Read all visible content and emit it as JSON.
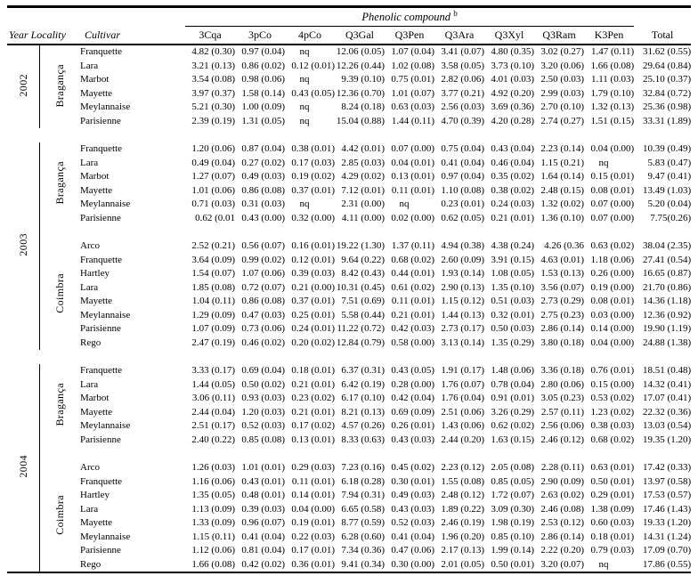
{
  "table": {
    "group_header": "Phenolic compound",
    "group_header_note": "b",
    "year_locality_header": "Year Locality",
    "cultivar_header": "Cultivar",
    "compound_columns": [
      "3Cqa",
      "3pCo",
      "4pCo",
      "Q3Gal",
      "Q3Pen",
      "Q3Ara",
      "Q3Xyl",
      "Q3Ram",
      "K3Pen"
    ],
    "total_label": "Total",
    "groups": [
      {
        "year": "2002",
        "localities": [
          {
            "name": "Bragança",
            "rows": [
              {
                "cultivar": "Franquette",
                "values": [
                  "4.82 (0.30)",
                  "0.97 (0.04)",
                  "nq",
                  "12.06 (0.05)",
                  "1.07 (0.04)",
                  "3.41 (0.07)",
                  "4.80 (0.35)",
                  "3.02 (0.27)",
                  "1.47 (0.11)",
                  "31.62 (0.55)"
                ]
              },
              {
                "cultivar": "Lara",
                "values": [
                  "3.21 (0.13)",
                  "0.86 (0.02)",
                  "0.12 (0.01)",
                  "12.26 (0.44)",
                  "1.02 (0.08)",
                  "3.58 (0.05)",
                  "3.73 (0.10)",
                  "3.20 (0.06)",
                  "1.66 (0.08)",
                  "29.64 (0.84)"
                ]
              },
              {
                "cultivar": "Marbot",
                "values": [
                  "3.54 (0.08)",
                  "0.98 (0.06)",
                  "nq",
                  "9.39 (0.10)",
                  "0.75 (0.01)",
                  "2.82 (0.06)",
                  "4.01 (0.03)",
                  "2.50 (0.03)",
                  "1.11 (0.03)",
                  "25.10 (0.37)"
                ]
              },
              {
                "cultivar": "Mayette",
                "values": [
                  "3.97 (0.37)",
                  "1.58 (0.14)",
                  "0.43 (0.05)",
                  "12.36 (0.70)",
                  "1.01 (0.07)",
                  "3.77 (0.21)",
                  "4.92 (0.20)",
                  "2.99 (0.03)",
                  "1.79 (0.10)",
                  "32.84 (0.72)"
                ]
              },
              {
                "cultivar": "Meylannaise",
                "values": [
                  "5.21 (0.30)",
                  "1.00 (0.09)",
                  "nq",
                  "8.24 (0.18)",
                  "0.63 (0.03)",
                  "2.56 (0.03)",
                  "3.69 (0.36)",
                  "2.70 (0.10)",
                  "1.32 (0.13)",
                  "25.36 (0.98)"
                ]
              },
              {
                "cultivar": "Parisienne",
                "values": [
                  "2.39 (0.19)",
                  "1.31 (0.05)",
                  "nq",
                  "15.04 (0.88)",
                  "1.44 (0.11)",
                  "4.70 (0.39)",
                  "4.20 (0.28)",
                  "2.74 (0.27)",
                  "1.51 (0.15)",
                  "33.31 (1.89)"
                ]
              }
            ]
          }
        ]
      },
      {
        "year": "2003",
        "localities": [
          {
            "name": "Bragança",
            "rows": [
              {
                "cultivar": "Franquette",
                "values": [
                  "1.20 (0.06)",
                  "0.87 (0.04)",
                  "0.38 (0.01)",
                  "4.42 (0.01)",
                  "0.07 (0.00)",
                  "0.75 (0.04)",
                  "0.43 (0.04)",
                  "2.23 (0.14)",
                  "0.04 (0.00)",
                  "10.39 (0.49)"
                ]
              },
              {
                "cultivar": "Lara",
                "values": [
                  "0.49 (0.04)",
                  "0.27 (0.02)",
                  "0.17 (0.03)",
                  "2.85 (0.03)",
                  "0.04 (0.01)",
                  "0.41 (0.04)",
                  "0.46 (0.04)",
                  "1.15 (0.21)",
                  "nq",
                  "5.83 (0.47)"
                ]
              },
              {
                "cultivar": "Marbot",
                "values": [
                  "1.27 (0.07)",
                  "0.49 (0.03)",
                  "0.19 (0.02)",
                  "4.29 (0.02)",
                  "0.13 (0.01)",
                  "0.97 (0.04)",
                  "0.35 (0.02)",
                  "1.64 (0.14)",
                  "0.15 (0.01)",
                  "9.47 (0.41)"
                ]
              },
              {
                "cultivar": "Mayette",
                "values": [
                  "1.01 (0.06)",
                  "0.86 (0.08)",
                  "0.37 (0.01)",
                  "7.12 (0.01)",
                  "0.11 (0.01)",
                  "1.10 (0.08)",
                  "0.38 (0.02)",
                  "2.48 (0.15)",
                  "0.08 (0.01)",
                  "13.49 (1.03)"
                ]
              },
              {
                "cultivar": "Meylannaise",
                "values": [
                  "0.71 (0.03)",
                  "0.31 (0.03)",
                  "nq",
                  "2.31 (0.00)",
                  "nq",
                  "0.23 (0.01)",
                  "0.24 (0.03)",
                  "1.32 (0.02)",
                  "0.07 (0.00)",
                  "5.20 (0.04)"
                ]
              },
              {
                "cultivar": "Parisienne",
                "values": [
                  "0.62 (0.01",
                  "0.43 (0.00)",
                  "0.32 (0.00)",
                  "4.11 (0.00)",
                  "0.02 (0.00)",
                  "0.62 (0.05)",
                  "0.21 (0.01)",
                  "1.36 (0.10)",
                  "0.07 (0.00)",
                  "7.75(0.26)"
                ]
              }
            ]
          },
          {
            "name": "Coimbra",
            "rows": [
              {
                "cultivar": "Arco",
                "values": [
                  "2.52 (0.21)",
                  "0.56 (0.07)",
                  "0.16 (0.01)",
                  "19.22 (1.30)",
                  "1.37 (0.11)",
                  "4.94 (0.38)",
                  "4.38 (0.24)",
                  "4.26 (0.36",
                  "0.63 (0.02)",
                  "38.04 (2.35)"
                ]
              },
              {
                "cultivar": "Franquette",
                "values": [
                  "3.64 (0.09)",
                  "0.99 (0.02)",
                  "0.12 (0.01)",
                  "9.64 (0.22)",
                  "0.68 (0.02)",
                  "2.60 (0.09)",
                  "3.91 (0.15)",
                  "4.63 (0.01)",
                  "1.18 (0.06)",
                  "27.41 (0.54)"
                ]
              },
              {
                "cultivar": "Hartley",
                "values": [
                  "1.54 (0.07)",
                  "1.07 (0.06)",
                  "0.39 (0.03)",
                  "8.42 (0.43)",
                  "0.44 (0.01)",
                  "1.93 (0.14)",
                  "1.08 (0.05)",
                  "1.53 (0.13)",
                  "0.26 (0.00)",
                  "16.65 (0.87)"
                ]
              },
              {
                "cultivar": "Lara",
                "values": [
                  "1.85 (0.08)",
                  "0.72 (0.07)",
                  "0.21 (0.00)",
                  "10.31 (0.45)",
                  "0.61 (0.02)",
                  "2.90 (0.13)",
                  "1.35 (0.10)",
                  "3.56 (0.07)",
                  "0.19 (0.00)",
                  "21.70 (0.86)"
                ]
              },
              {
                "cultivar": "Mayette",
                "values": [
                  "1.04 (0.11)",
                  "0.86 (0.08)",
                  "0.37 (0.01)",
                  "7.51 (0.69)",
                  "0.11 (0.01)",
                  "1.15 (0.12)",
                  "0.51 (0.03)",
                  "2.73 (0.29)",
                  "0.08 (0.01)",
                  "14.36 (1.18)"
                ]
              },
              {
                "cultivar": "Meylannaise",
                "values": [
                  "1.29 (0.09)",
                  "0.47 (0.03)",
                  "0.25 (0.01)",
                  "5.58 (0.44)",
                  "0.21 (0.01)",
                  "1.44 (0.13)",
                  "0.32 (0.01)",
                  "2.75 (0.23)",
                  "0.03 (0.00)",
                  "12.36 (0.92)"
                ]
              },
              {
                "cultivar": "Parisienne",
                "values": [
                  "1.07 (0.09)",
                  "0.73 (0.06)",
                  "0.24 (0.01)",
                  "11.22 (0.72)",
                  "0.42 (0.03)",
                  "2.73 (0.17)",
                  "0.50 (0.03)",
                  "2.86 (0.14)",
                  "0.14 (0.00)",
                  "19.90 (1.19)"
                ]
              },
              {
                "cultivar": "Rego",
                "values": [
                  "2.47 (0.19)",
                  "0.46 (0.02)",
                  "0.20 (0.02)",
                  "12.84 (0.79)",
                  "0.58 (0.00)",
                  "3.13 (0.14)",
                  "1.35 (0.29)",
                  "3.80 (0.18)",
                  "0.04 (0.00)",
                  "24.88 (1.38)"
                ]
              }
            ]
          }
        ]
      },
      {
        "year": "2004",
        "localities": [
          {
            "name": "Bragança",
            "rows": [
              {
                "cultivar": "Franquette",
                "values": [
                  "3.33 (0.17)",
                  "0.69 (0.04)",
                  "0.18 (0.01)",
                  "6.37 (0.31)",
                  "0.43 (0.05)",
                  "1.91 (0.17)",
                  "1.48 (0.06)",
                  "3.36 (0.18)",
                  "0.76 (0.01)",
                  "18.51 (0.48)"
                ]
              },
              {
                "cultivar": "Lara",
                "values": [
                  "1.44 (0.05)",
                  "0.50 (0.02)",
                  "0.21 (0.01)",
                  "6.42 (0.19)",
                  "0.28 (0.00)",
                  "1.76 (0.07)",
                  "0.78 (0.04)",
                  "2.80 (0.06)",
                  "0.15 (0.00)",
                  "14.32 (0.41)"
                ]
              },
              {
                "cultivar": "Marbot",
                "values": [
                  "3.06 (0.11)",
                  "0.93 (0.03)",
                  "0.23 (0.02)",
                  "6.17 (0.10)",
                  "0.42 (0.04)",
                  "1.76 (0.04)",
                  "0.91 (0.01)",
                  "3.05 (0.23)",
                  "0.53 (0.02)",
                  "17.07 (0.41)"
                ]
              },
              {
                "cultivar": "Mayette",
                "values": [
                  "2.44 (0.04)",
                  "1.20 (0.03)",
                  "0.21 (0.01)",
                  "8.21 (0.13)",
                  "0.69 (0.09)",
                  "2.51 (0.06)",
                  "3.26 (0.29)",
                  "2.57 (0.11)",
                  "1.23 (0.02)",
                  "22.32 (0.36)"
                ]
              },
              {
                "cultivar": "Meylannaise",
                "values": [
                  "2.51 (0.17)",
                  "0.52 (0.03)",
                  "0.17 (0.02)",
                  "4.57 (0.26)",
                  "0.26 (0.01)",
                  "1.43 (0.06)",
                  "0.62 (0.02)",
                  "2.56 (0.06)",
                  "0.38 (0.03)",
                  "13.03 (0.54)"
                ]
              },
              {
                "cultivar": "Parisienne",
                "values": [
                  "2.40 (0.22)",
                  "0.85 (0.08)",
                  "0.13 (0.01)",
                  "8.33 (0.63)",
                  "0.43 (0.03)",
                  "2.44 (0.20)",
                  "1.63 (0.15)",
                  "2.46 (0.12)",
                  "0.68 (0.02)",
                  "19.35 (1.20)"
                ]
              }
            ]
          },
          {
            "name": "Coimbra",
            "rows": [
              {
                "cultivar": "Arco",
                "values": [
                  "1.26 (0.03)",
                  "1.01 (0.01)",
                  "0.29 (0.03)",
                  "7.23 (0.16)",
                  "0.45 (0.02)",
                  "2.23 (0.12)",
                  "2.05 (0.08)",
                  "2.28 (0.11)",
                  "0.63 (0.01)",
                  "17.42 (0.33)"
                ]
              },
              {
                "cultivar": "Franquette",
                "values": [
                  "1.16 (0.06)",
                  "0.43 (0.01)",
                  "0.11 (0.01)",
                  "6.18 (0.28)",
                  "0.30 (0.01)",
                  "1.55 (0.08)",
                  "0.85 (0.05)",
                  "2.90 (0.09)",
                  "0.50 (0.01)",
                  "13.97 (0.58)"
                ]
              },
              {
                "cultivar": "Hartley",
                "values": [
                  "1.35 (0.05)",
                  "0.48 (0.01)",
                  "0.14 (0.01)",
                  "7.94 (0.31)",
                  "0.49 (0.03)",
                  "2.48 (0.12)",
                  "1.72 (0.07)",
                  "2.63 (0.02)",
                  "0.29 (0.01)",
                  "17.53 (0.57)"
                ]
              },
              {
                "cultivar": "Lara",
                "values": [
                  "1.13 (0.09)",
                  "0.39 (0.03)",
                  "0.04 (0.00)",
                  "6.65 (0.58)",
                  "0.43 (0.03)",
                  "1.89 (0.22)",
                  "3.09 (0.30)",
                  "2.46 (0.08)",
                  "1.38 (0.09)",
                  "17.46 (1.43)"
                ]
              },
              {
                "cultivar": "Mayette",
                "values": [
                  "1.33 (0.09)",
                  "0.96 (0.07)",
                  "0.19 (0.01)",
                  "8.77 (0.59)",
                  "0.52 (0.03)",
                  "2.46 (0.19)",
                  "1.98 (0.19)",
                  "2.53 (0.12)",
                  "0.60 (0.03)",
                  "19.33 (1.20)"
                ]
              },
              {
                "cultivar": "Meylannaise",
                "values": [
                  "1.15 (0.11)",
                  "0.41 (0.04)",
                  "0.22 (0.03)",
                  "6.28 (0.60)",
                  "0.41 (0.04)",
                  "1.96 (0.20)",
                  "0.85 (0.10)",
                  "2.86 (0.14)",
                  "0.18 (0.01)",
                  "14.31 (1.24)"
                ]
              },
              {
                "cultivar": "Parisienne",
                "values": [
                  "1.12 (0.06)",
                  "0.81 (0.04)",
                  "0.17 (0.01)",
                  "7.34 (0.36)",
                  "0.47 (0.06)",
                  "2.17 (0.13)",
                  "1.99 (0.14)",
                  "2.22 (0.20)",
                  "0.79 (0.03)",
                  "17.09 (0.70)"
                ]
              },
              {
                "cultivar": "Rego",
                "values": [
                  "1.66 (0.08)",
                  "0.42 (0.02)",
                  "0.36 (0.01)",
                  "9.41 (0.34)",
                  "0.30 (0.00)",
                  "2.01 (0.05)",
                  "0.50 (0.01)",
                  "3.20 (0.07)",
                  "nq",
                  "17.86 (0.55)"
                ]
              }
            ]
          }
        ]
      }
    ]
  }
}
